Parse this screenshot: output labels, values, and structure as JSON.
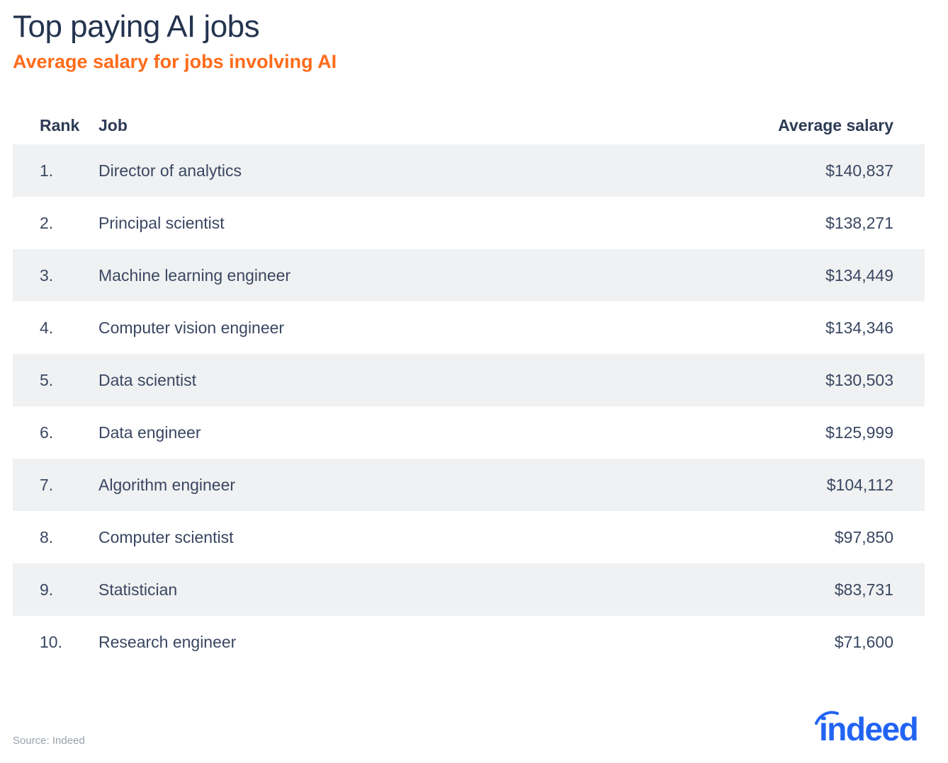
{
  "title": "Top paying AI jobs",
  "subtitle": "Average salary for jobs involving AI",
  "source": "Source: Indeed",
  "logo_text": "indeed",
  "colors": {
    "title": "#24344f",
    "subtitle": "#ff6b1a",
    "row_alt": "#f0f1f2",
    "logo": "#2164f3"
  },
  "chart_data": {
    "type": "table",
    "columns": [
      "Rank",
      "Job",
      "Average salary"
    ],
    "rows": [
      {
        "rank": "1.",
        "job": "Director of analytics",
        "salary": "$140,837"
      },
      {
        "rank": "2.",
        "job": "Principal scientist",
        "salary": "$138,271"
      },
      {
        "rank": "3.",
        "job": "Machine learning engineer",
        "salary": "$134,449"
      },
      {
        "rank": "4.",
        "job": "Computer vision engineer",
        "salary": "$134,346"
      },
      {
        "rank": "5.",
        "job": "Data scientist",
        "salary": "$130,503"
      },
      {
        "rank": "6.",
        "job": "Data engineer",
        "salary": "$125,999"
      },
      {
        "rank": "7.",
        "job": "Algorithm engineer",
        "salary": "$104,112"
      },
      {
        "rank": "8.",
        "job": "Computer scientist",
        "salary": "$97,850"
      },
      {
        "rank": "9.",
        "job": "Statistician",
        "salary": "$83,731"
      },
      {
        "rank": "10.",
        "job": "Research engineer",
        "salary": "$71,600"
      }
    ]
  }
}
